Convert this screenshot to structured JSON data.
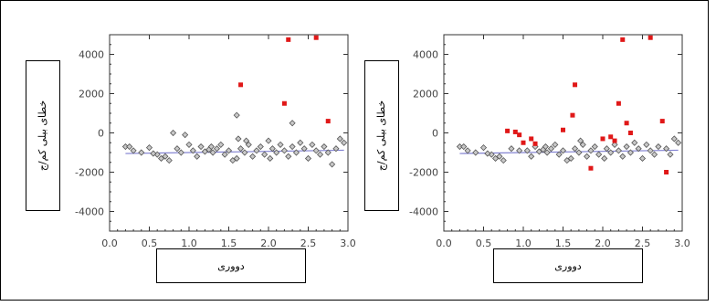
{
  "chart_data": [
    {
      "type": "scatter",
      "ylabel": "خطای بیلی کم/ج",
      "xlabel": "دووری",
      "xlim": [
        0.0,
        3.0
      ],
      "ylim": [
        -5000,
        5000
      ],
      "xticks": [
        "0.0",
        "0.5",
        "1.0",
        "1.5",
        "2.0",
        "2.5",
        "3.0"
      ],
      "yticks": [
        "4000",
        "2000",
        "0",
        "-2000",
        "-4000"
      ],
      "trend_line": {
        "x": [
          0.2,
          2.95
        ],
        "y": [
          -1050,
          -880
        ],
        "color": "#7f7fd0"
      },
      "series": [
        {
          "marker": "diamond",
          "color": "#555555",
          "points": [
            [
              0.2,
              -700
            ],
            [
              0.3,
              -900
            ],
            [
              0.4,
              -1000
            ],
            [
              0.5,
              -750
            ],
            [
              0.6,
              -1100
            ],
            [
              0.65,
              -1300
            ],
            [
              0.7,
              -1200
            ],
            [
              0.75,
              -1400
            ],
            [
              0.8,
              0
            ],
            [
              0.85,
              -800
            ],
            [
              0.9,
              -1000
            ],
            [
              0.95,
              -100
            ],
            [
              1.0,
              -600
            ],
            [
              1.05,
              -900
            ],
            [
              1.1,
              -1200
            ],
            [
              1.15,
              -700
            ],
            [
              1.2,
              -950
            ],
            [
              1.25,
              -850
            ],
            [
              1.3,
              -1000
            ],
            [
              1.35,
              -800
            ],
            [
              1.4,
              -600
            ],
            [
              1.45,
              -1100
            ],
            [
              1.5,
              -900
            ],
            [
              1.55,
              -1400
            ],
            [
              1.6,
              -1300
            ],
            [
              1.62,
              -300
            ],
            [
              1.65,
              -800
            ],
            [
              1.7,
              -1000
            ],
            [
              1.75,
              -600
            ],
            [
              1.8,
              -1200
            ],
            [
              1.85,
              -900
            ],
            [
              1.9,
              -700
            ],
            [
              1.95,
              -1100
            ],
            [
              2.0,
              -400
            ],
            [
              2.05,
              -800
            ],
            [
              2.1,
              -1000
            ],
            [
              2.15,
              -600
            ],
            [
              2.2,
              -900
            ],
            [
              2.25,
              -1200
            ],
            [
              2.3,
              -700
            ],
            [
              2.35,
              -1000
            ],
            [
              2.4,
              -500
            ],
            [
              2.45,
              -800
            ],
            [
              2.5,
              -1300
            ],
            [
              2.55,
              -600
            ],
            [
              2.6,
              -900
            ],
            [
              2.65,
              -1100
            ],
            [
              2.7,
              -700
            ],
            [
              2.75,
              -1000
            ],
            [
              2.8,
              -1600
            ],
            [
              2.85,
              -800
            ],
            [
              2.9,
              -300
            ],
            [
              2.95,
              -500
            ],
            [
              1.6,
              900
            ],
            [
              2.3,
              500
            ],
            [
              0.25,
              -700
            ],
            [
              0.55,
              -1050
            ],
            [
              1.28,
              -700
            ],
            [
              1.72,
              -400
            ],
            [
              2.02,
              -1300
            ]
          ]
        },
        {
          "marker": "square",
          "color": "#e01818",
          "points": [
            [
              2.25,
              4750
            ],
            [
              2.6,
              4850
            ],
            [
              1.65,
              2450
            ],
            [
              2.2,
              1500
            ],
            [
              2.75,
              600
            ]
          ]
        }
      ]
    },
    {
      "type": "scatter",
      "ylabel": "خطای بیلی کم/ج",
      "xlabel": "دووری",
      "xlim": [
        0.0,
        3.0
      ],
      "ylim": [
        -5000,
        5000
      ],
      "xticks": [
        "0.0",
        "0.5",
        "1.0",
        "1.5",
        "2.0",
        "2.5",
        "3.0"
      ],
      "yticks": [
        "4000",
        "2000",
        "0",
        "-2000",
        "-4000"
      ],
      "trend_line": {
        "x": [
          0.2,
          2.95
        ],
        "y": [
          -1050,
          -880
        ],
        "color": "#7f7fd0"
      },
      "series": [
        {
          "marker": "diamond",
          "color": "#555555",
          "points": [
            [
              0.2,
              -700
            ],
            [
              0.3,
              -900
            ],
            [
              0.4,
              -1000
            ],
            [
              0.5,
              -750
            ],
            [
              0.6,
              -1100
            ],
            [
              0.65,
              -1300
            ],
            [
              0.7,
              -1200
            ],
            [
              0.75,
              -1400
            ],
            [
              0.85,
              -800
            ],
            [
              0.95,
              -900
            ],
            [
              1.05,
              -900
            ],
            [
              1.1,
              -1200
            ],
            [
              1.15,
              -700
            ],
            [
              1.2,
              -950
            ],
            [
              1.25,
              -850
            ],
            [
              1.3,
              -1000
            ],
            [
              1.35,
              -800
            ],
            [
              1.4,
              -600
            ],
            [
              1.45,
              -1100
            ],
            [
              1.5,
              -900
            ],
            [
              1.55,
              -1400
            ],
            [
              1.6,
              -1300
            ],
            [
              1.65,
              -800
            ],
            [
              1.7,
              -1000
            ],
            [
              1.75,
              -600
            ],
            [
              1.8,
              -1200
            ],
            [
              1.85,
              -900
            ],
            [
              1.9,
              -700
            ],
            [
              1.95,
              -1100
            ],
            [
              2.05,
              -800
            ],
            [
              2.1,
              -1000
            ],
            [
              2.15,
              -600
            ],
            [
              2.2,
              -900
            ],
            [
              2.25,
              -1200
            ],
            [
              2.3,
              -700
            ],
            [
              2.35,
              -1000
            ],
            [
              2.4,
              -500
            ],
            [
              2.45,
              -800
            ],
            [
              2.5,
              -1300
            ],
            [
              2.55,
              -600
            ],
            [
              2.6,
              -900
            ],
            [
              2.65,
              -1100
            ],
            [
              2.7,
              -700
            ],
            [
              2.8,
              -800
            ],
            [
              2.85,
              -1100
            ],
            [
              2.9,
              -300
            ],
            [
              2.95,
              -500
            ],
            [
              0.25,
              -700
            ],
            [
              0.55,
              -1050
            ],
            [
              1.28,
              -700
            ],
            [
              1.72,
              -400
            ],
            [
              2.02,
              -1300
            ]
          ]
        },
        {
          "marker": "square",
          "color": "#e01818",
          "points": [
            [
              2.25,
              4750
            ],
            [
              2.6,
              4850
            ],
            [
              1.65,
              2450
            ],
            [
              2.2,
              1500
            ],
            [
              1.62,
              900
            ],
            [
              2.75,
              600
            ],
            [
              2.3,
              500
            ],
            [
              0.8,
              100
            ],
            [
              0.9,
              50
            ],
            [
              1.0,
              -500
            ],
            [
              1.1,
              -300
            ],
            [
              1.5,
              150
            ],
            [
              2.0,
              -300
            ],
            [
              2.1,
              -200
            ],
            [
              2.35,
              0
            ],
            [
              1.85,
              -1800
            ],
            [
              2.8,
              -2000
            ],
            [
              0.95,
              -100
            ],
            [
              1.15,
              -550
            ],
            [
              2.15,
              -400
            ]
          ]
        }
      ]
    }
  ]
}
